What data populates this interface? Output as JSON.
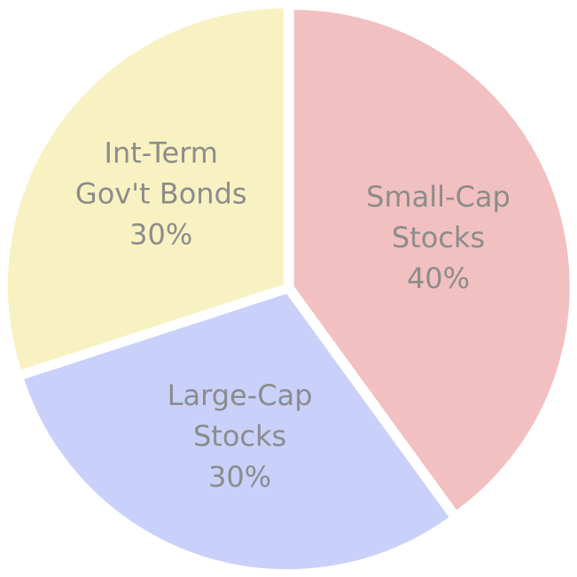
{
  "chart_data": {
    "type": "pie",
    "title": "",
    "legend": "none",
    "start_angle_deg": 0,
    "direction": "clockwise",
    "slices": [
      {
        "id": "small-cap",
        "label_lines": [
          "Small-Cap",
          "Stocks",
          "40%"
        ],
        "value": 40,
        "color": "#f2c0c0"
      },
      {
        "id": "large-cap",
        "label_lines": [
          "Large-Cap",
          "Stocks",
          "30%"
        ],
        "value": 30,
        "color": "#c9d0fa"
      },
      {
        "id": "int-term-bonds",
        "label_lines": [
          "Int-Term",
          "Gov't Bonds",
          "30%"
        ],
        "value": 30,
        "color": "#f8f2c2"
      }
    ]
  }
}
